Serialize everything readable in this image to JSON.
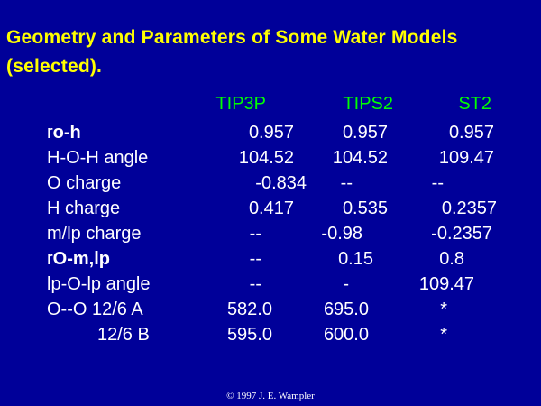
{
  "title": {
    "line1": "Geometry and Parameters of Some Water Models",
    "line2": "(selected)."
  },
  "columns": [
    "TIP3P",
    "TIPS2",
    "ST2"
  ],
  "rows": [
    {
      "label_prefix": "r",
      "label_bold": "o-h",
      "values": [
        "0.957",
        "0.957",
        "0.957"
      ]
    },
    {
      "label_prefix": "H-O-H angle",
      "label_bold": "",
      "values": [
        "104.52",
        "104.52",
        "109.47"
      ]
    },
    {
      "label_prefix": "O charge",
      "label_bold": "",
      "values": [
        "-0.834",
        "--",
        "--"
      ]
    },
    {
      "label_prefix": "H charge",
      "label_bold": "",
      "values": [
        "0.417",
        "0.535",
        "0.2357"
      ]
    },
    {
      "label_prefix": "m/lp charge",
      "label_bold": "",
      "values": [
        "--",
        "-0.98",
        "-0.2357"
      ]
    },
    {
      "label_prefix": "r",
      "label_bold": "O-m,lp",
      "values": [
        "--",
        "0.15",
        "0.8"
      ]
    },
    {
      "label_prefix": "lp-O-lp angle",
      "label_bold": "",
      "values": [
        "--",
        "-",
        "109.47"
      ]
    },
    {
      "label_prefix": "O--O 12/6 A",
      "label_bold": "",
      "values": [
        "582.0",
        "695.0",
        "*"
      ]
    },
    {
      "label_prefix": "12/6 B",
      "label_bold": "",
      "values": [
        "595.0",
        "600.0",
        "*"
      ]
    }
  ],
  "footer": "© 1997 J. E. Wampler",
  "colors": {
    "background": "#000099",
    "title": "#ffff00",
    "header": "#00ff00",
    "text": "#ffffff"
  }
}
